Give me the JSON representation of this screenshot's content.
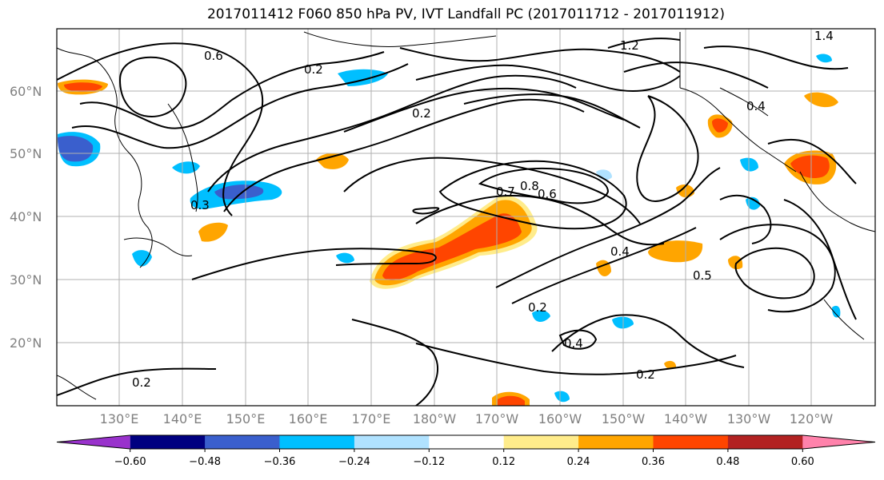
{
  "title": "2017011412 F060 850 hPa PV, IVT Landfall PC (2017011712 - 2017011912)",
  "lat_labels": [
    "60°N",
    "50°N",
    "40°N",
    "30°N",
    "20°N"
  ],
  "lon_labels": [
    "130°E",
    "140°E",
    "150°E",
    "160°E",
    "170°E",
    "180°W",
    "170°W",
    "160°W",
    "150°W",
    "140°W",
    "130°W",
    "120°W"
  ],
  "colorbar": {
    "ticks": [
      "−0.60",
      "−0.48",
      "−0.36",
      "−0.24",
      "−0.12",
      "0.12",
      "0.24",
      "0.36",
      "0.48",
      "0.60"
    ],
    "colors": [
      "#9932cc",
      "#000080",
      "#3a5fcd",
      "#00bfff",
      "#b0e2ff",
      "#ffffff",
      "#ffec8b",
      "#ffa500",
      "#ff4500",
      "#b22222",
      "#ff82ab"
    ]
  },
  "contour_labels": [
    "0.2",
    "0.8",
    "0.6",
    "0.4",
    "0.5",
    "0.7",
    "0.2",
    "0.4",
    "0.2",
    "0.2",
    "1.2",
    "1.4",
    "0.4",
    "0.3",
    "0.6",
    "0.2"
  ],
  "colors": {
    "positive_core": "#ff4500",
    "positive_mid": "#ffa500",
    "positive_low": "#ffec8b",
    "negative_low": "#b0e2ff",
    "negative_mid": "#00bfff",
    "negative_core": "#3a5fcd"
  }
}
